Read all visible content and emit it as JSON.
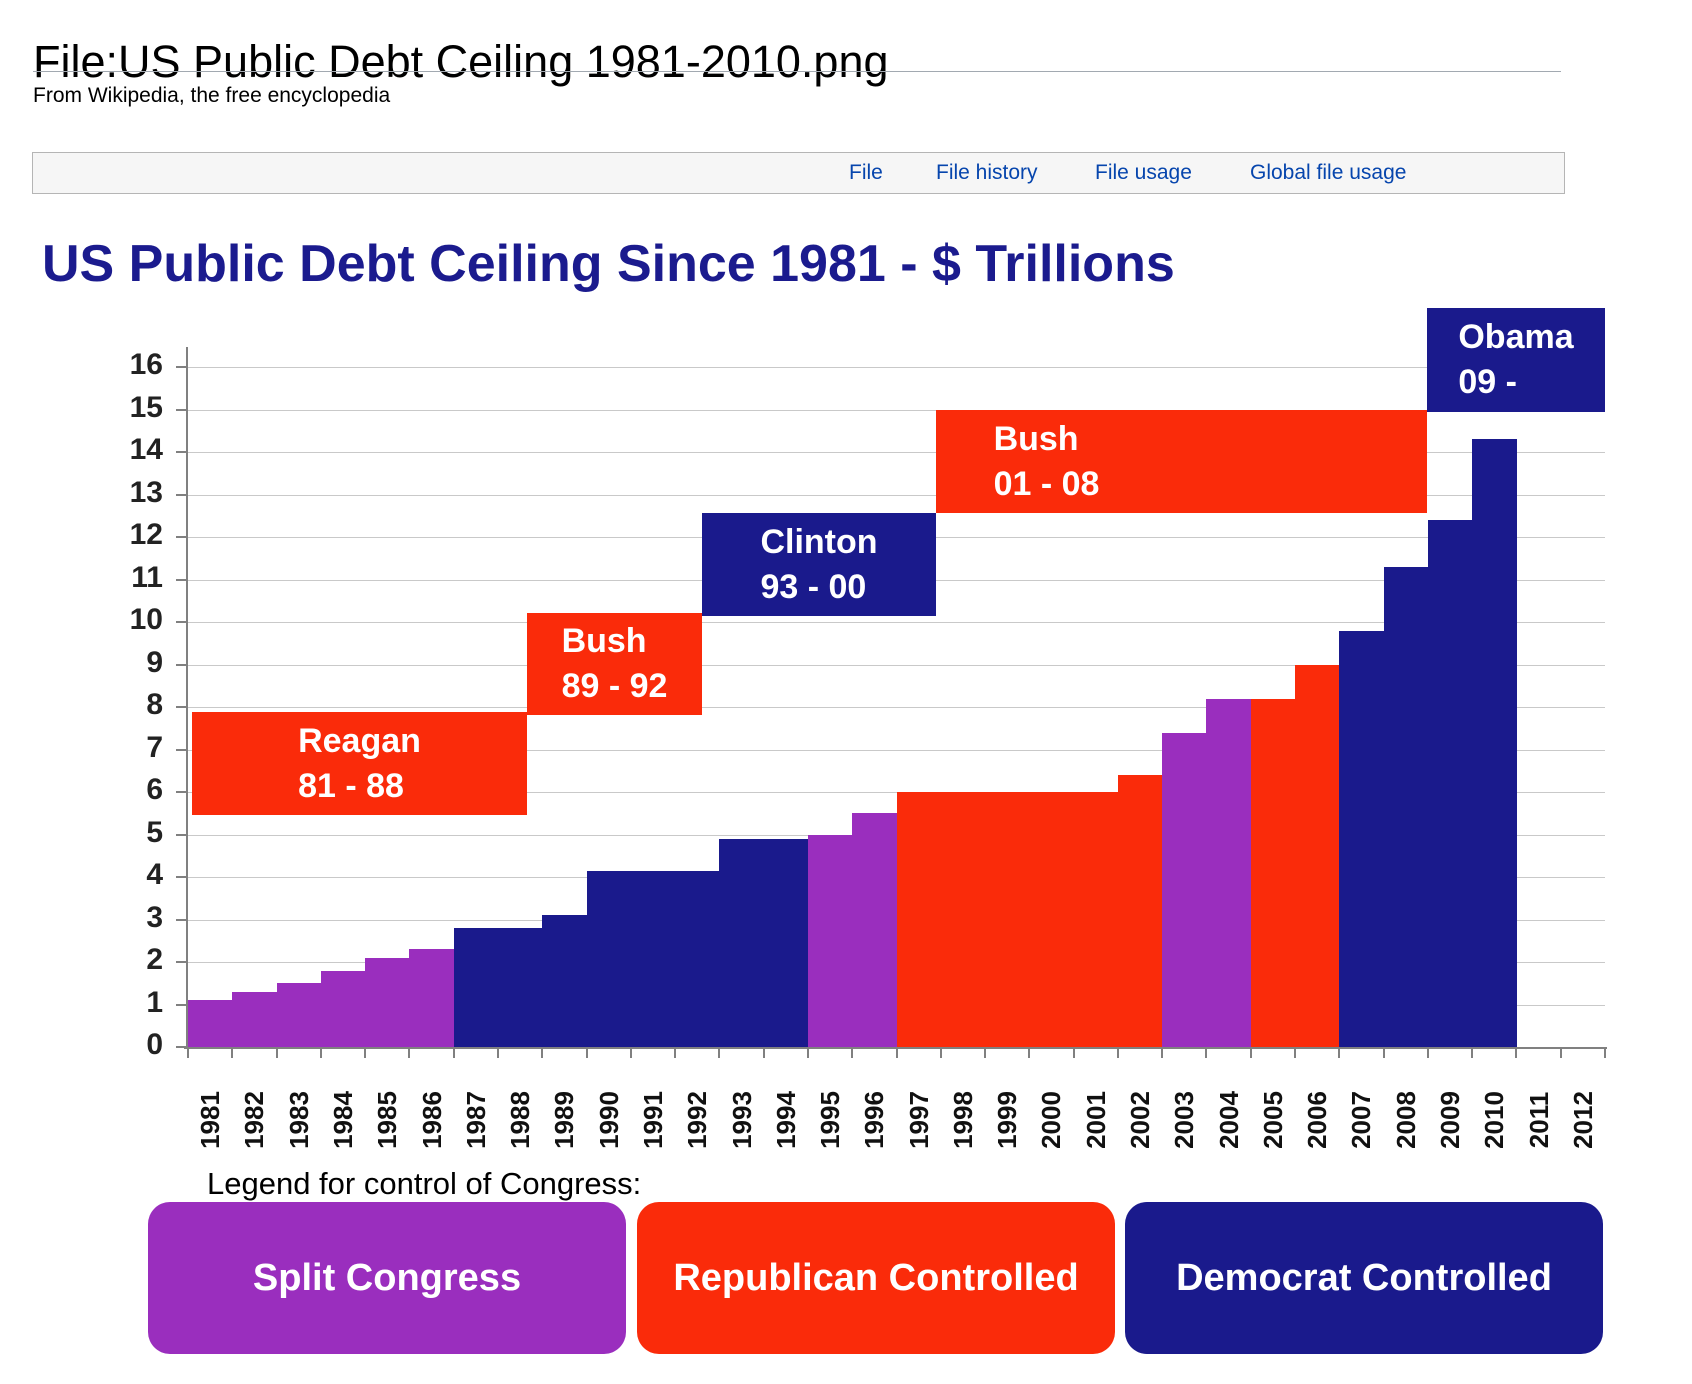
{
  "page": {
    "title": "File:US Public Debt Ceiling 1981-2010.png",
    "subtitle": "From Wikipedia, the free encyclopedia",
    "tabs": [
      {
        "label": "File"
      },
      {
        "label": "File history"
      },
      {
        "label": "File usage"
      },
      {
        "label": "Global file usage"
      }
    ]
  },
  "colors": {
    "split": "#9a2ebe",
    "republican": "#fa2b0a",
    "democrat": "#1a1a8c",
    "chart_title": "#1b1b8e",
    "link_blue": "#0645ad"
  },
  "chart_data": {
    "type": "bar",
    "title": "US Public Debt Ceiling Since 1981 - $ Trillions",
    "ylabel": "",
    "xlabel": "",
    "ylim": [
      0,
      16
    ],
    "yticks": [
      0,
      1,
      2,
      3,
      4,
      5,
      6,
      7,
      8,
      9,
      10,
      11,
      12,
      13,
      14,
      15,
      16
    ],
    "grid": true,
    "categories": [
      1981,
      1982,
      1983,
      1984,
      1985,
      1986,
      1987,
      1988,
      1989,
      1990,
      1991,
      1992,
      1993,
      1994,
      1995,
      1996,
      1997,
      1998,
      1999,
      2000,
      2001,
      2002,
      2003,
      2004,
      2005,
      2006,
      2007,
      2008,
      2009,
      2010,
      2011,
      2012
    ],
    "values": [
      1.1,
      1.3,
      1.5,
      1.8,
      2.1,
      2.3,
      2.8,
      2.8,
      3.1,
      4.15,
      4.15,
      4.15,
      4.9,
      4.9,
      5.0,
      5.5,
      6.0,
      6.0,
      6.0,
      6.0,
      6.0,
      6.4,
      7.4,
      8.2,
      8.2,
      9.0,
      9.8,
      11.3,
      12.4,
      14.3,
      null,
      null
    ],
    "congress_control": [
      "split",
      "split",
      "split",
      "split",
      "split",
      "split",
      "democrat",
      "democrat",
      "democrat",
      "democrat",
      "democrat",
      "democrat",
      "democrat",
      "democrat",
      "split",
      "split",
      "republican",
      "republican",
      "republican",
      "republican",
      "republican",
      "republican",
      "split",
      "split",
      "republican",
      "republican",
      "democrat",
      "democrat",
      "democrat",
      "democrat",
      null,
      null
    ],
    "president_labels": [
      {
        "name": "Reagan",
        "years": "81 - 88",
        "party": "republican"
      },
      {
        "name": "Bush",
        "years": "89 - 92",
        "party": "republican"
      },
      {
        "name": "Clinton",
        "years": "93 - 00",
        "party": "democrat"
      },
      {
        "name": "Bush",
        "years": "01 - 08",
        "party": "republican"
      },
      {
        "name": "Obama",
        "years": "09 -",
        "party": "democrat"
      }
    ],
    "legend_title": "Legend for control of Congress:",
    "legend": [
      {
        "label": "Split Congress",
        "control": "split"
      },
      {
        "label": "Republican Controlled",
        "control": "republican"
      },
      {
        "label": "Democrat Controlled",
        "control": "democrat"
      }
    ]
  }
}
